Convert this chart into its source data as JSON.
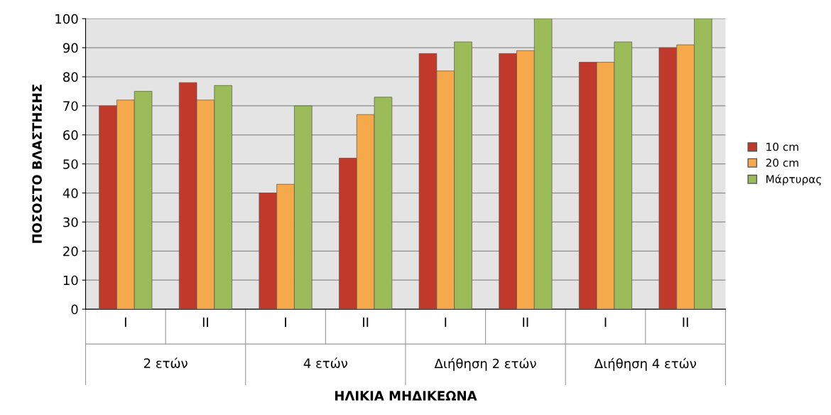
{
  "chart_data": {
    "type": "bar",
    "xlabel": "ΗΛΙΚΙΑ ΜΗΔΙΚΕΩΝΑ",
    "ylabel": "ΠΟΣΟΣΤΟ ΒΛΑΣΤΗΣΗΣ",
    "categories": [
      "I",
      "II",
      "I",
      "II",
      "I",
      "II",
      "I",
      "II"
    ],
    "annotations": [
      "2 ετών",
      "4 ετών",
      "Διήθηση 2 ετών",
      "Διήθηση 4 ετών"
    ],
    "series": [
      {
        "name": "10 cm",
        "color": "#c0392b",
        "values": [
          70,
          78,
          40,
          52,
          88,
          88,
          85,
          90
        ]
      },
      {
        "name": "20 cm",
        "color": "#f5a94a",
        "values": [
          72,
          72,
          43,
          67,
          82,
          89,
          85,
          91
        ]
      },
      {
        "name": "Μάρτυρας",
        "color": "#9bbb59",
        "values": [
          75,
          77,
          70,
          73,
          92,
          100,
          92,
          100
        ]
      }
    ],
    "ylim": [
      0,
      100
    ],
    "yticks": [
      0,
      10,
      20,
      30,
      40,
      50,
      60,
      70,
      80,
      90,
      100
    ],
    "grid": "y",
    "legend": "right"
  }
}
